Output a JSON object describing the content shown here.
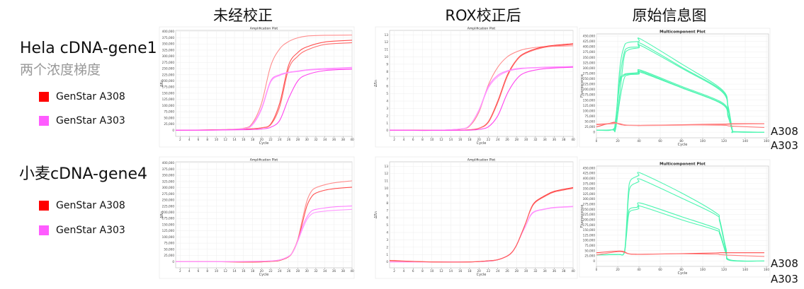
{
  "headers": [
    "未经校正",
    "ROX校正后",
    "原始信息图"
  ],
  "rows": [
    {
      "sample": "Hela cDNA-gene1",
      "subtitle": "两个浓度梯度",
      "legend": [
        {
          "label": "GenStar A308",
          "color": "#ff0000"
        },
        {
          "label": "GenStar A303",
          "color": "#ff5cff"
        }
      ],
      "annotations": [
        "A308",
        "A303"
      ]
    },
    {
      "sample": "小麦cDNA-gene4",
      "subtitle": "",
      "legend": [
        {
          "label": "GenStar A308",
          "color": "#ff0000"
        },
        {
          "label": "GenStar A303",
          "color": "#ff5cff"
        }
      ],
      "annotations": [
        "A308",
        "A303"
      ]
    }
  ],
  "colors": {
    "a308_a": "#ff4040",
    "a308_b": "#ff8c8c",
    "a303": "#ff55ff",
    "multi_green": "#4cf5b0",
    "multi_red": "#ff4a4a"
  },
  "chart_data": [
    {
      "type": "line",
      "title": "Amplification Plot",
      "xlabel": "Cycle",
      "ylabel": "ΔRn",
      "xlim": [
        1,
        40
      ],
      "ylim": [
        -25000,
        405000
      ],
      "xticks": {
        "start": 2,
        "end": 40,
        "step": 2
      },
      "yticks": {
        "start": 0,
        "end": 400000,
        "step": 25000
      },
      "grid": true,
      "x": [
        1,
        10,
        16,
        18,
        20,
        22,
        24,
        26,
        28,
        30,
        34,
        40
      ],
      "series": [
        {
          "color": "#ff8c8c",
          "values": [
            0,
            2000,
            8000,
            30000,
            110000,
            260000,
            330000,
            360000,
            375000,
            382000,
            385000,
            386000
          ]
        },
        {
          "color": "#ff5050",
          "values": [
            0,
            1500,
            4000,
            6000,
            10000,
            25000,
            110000,
            265000,
            315000,
            338000,
            358000,
            365000
          ]
        },
        {
          "color": "#ff6a6a",
          "values": [
            0,
            1500,
            4000,
            6000,
            10000,
            22000,
            95000,
            250000,
            300000,
            325000,
            348000,
            355000
          ]
        },
        {
          "color": "#ff80ff",
          "values": [
            0,
            1000,
            6000,
            25000,
            90000,
            200000,
            225000,
            235000,
            240000,
            245000,
            250000,
            255000
          ]
        },
        {
          "color": "#ff99ff",
          "values": [
            0,
            1000,
            6000,
            22000,
            85000,
            195000,
            222000,
            233000,
            238000,
            243000,
            247000,
            250000
          ]
        },
        {
          "color": "#ff44ee",
          "values": [
            0,
            500,
            2000,
            3000,
            5000,
            12000,
            40000,
            130000,
            200000,
            225000,
            242000,
            248000
          ]
        }
      ]
    },
    {
      "type": "line",
      "title": "Amplification Plot",
      "xlabel": "Cycle",
      "ylabel": "ΔRn",
      "xlim": [
        1,
        40
      ],
      "ylim": [
        -0.8,
        13.6
      ],
      "xticks": {
        "start": 2,
        "end": 40,
        "step": 2
      },
      "yticks": {
        "start": 0,
        "end": 13,
        "step": 1
      },
      "grid": true,
      "x": [
        1,
        10,
        16,
        18,
        20,
        22,
        24,
        26,
        28,
        30,
        34,
        40
      ],
      "series": [
        {
          "color": "#ff8c8c",
          "values": [
            0.05,
            0.02,
            0.2,
            0.6,
            2.5,
            6.2,
            8.6,
            10,
            10.7,
            11.1,
            11.4,
            11.5
          ]
        },
        {
          "color": "#ff4040",
          "values": [
            0.05,
            0.02,
            0.05,
            0.1,
            0.3,
            1.2,
            4,
            7.5,
            9.6,
            10.6,
            11.4,
            11.8
          ]
        },
        {
          "color": "#ff7070",
          "values": [
            0.05,
            0.02,
            0.05,
            0.1,
            0.3,
            1.1,
            3.8,
            7.3,
            9.5,
            10.5,
            11.3,
            11.7
          ]
        },
        {
          "color": "#ff80ff",
          "values": [
            0.05,
            0.02,
            0.2,
            0.7,
            2.8,
            6,
            7.5,
            8.1,
            8.4,
            8.5,
            8.6,
            8.7
          ]
        },
        {
          "color": "#ff99ff",
          "values": [
            0.05,
            0.02,
            0.2,
            0.7,
            2.7,
            5.8,
            7.3,
            8,
            8.3,
            8.45,
            8.55,
            8.6
          ]
        },
        {
          "color": "#ff44ee",
          "values": [
            0.05,
            0.02,
            0.03,
            0.05,
            0.15,
            0.5,
            2,
            5,
            7,
            7.9,
            8.4,
            8.6
          ]
        }
      ]
    },
    {
      "type": "line",
      "title": "Multicomponent Plot",
      "xlabel": "Cycle",
      "ylabel": "Fluorescence",
      "xlim": [
        0,
        162
      ],
      "ylim": [
        -26000,
        460000
      ],
      "xticks": {
        "start": 0,
        "end": 160,
        "step": 20
      },
      "yticks": {
        "start": 0,
        "end": 450000,
        "step": 25000
      },
      "grid": true,
      "x": [
        0,
        15,
        18,
        22,
        26,
        30,
        40,
        42,
        80,
        118,
        124,
        128,
        130,
        158
      ],
      "series": [
        {
          "color": "#4cf5b0",
          "values": [
            10000,
            12000,
            40000,
            300000,
            400000,
            420000,
            425000,
            435000,
            320000,
            200000,
            120000,
            10000,
            3000,
            0
          ]
        },
        {
          "color": "#4cf5b0",
          "values": [
            10000,
            12000,
            30000,
            250000,
            370000,
            395000,
            400000,
            415000,
            305000,
            195000,
            110000,
            8000,
            2000,
            0
          ]
        },
        {
          "color": "#4cf5b0",
          "values": [
            10000,
            11000,
            15000,
            180000,
            350000,
            385000,
            395000,
            405000,
            300000,
            190000,
            100000,
            8000,
            2000,
            0
          ]
        },
        {
          "color": "#4cf5b0",
          "values": [
            10000,
            12000,
            60000,
            240000,
            270000,
            275000,
            280000,
            290000,
            215000,
            140000,
            80000,
            5000,
            1000,
            0
          ]
        },
        {
          "color": "#4cf5b0",
          "values": [
            10000,
            12000,
            45000,
            230000,
            265000,
            272000,
            275000,
            285000,
            210000,
            135000,
            75000,
            5000,
            1000,
            0
          ]
        },
        {
          "color": "#4cf5b0",
          "values": [
            10000,
            11000,
            15000,
            150000,
            250000,
            268000,
            272000,
            280000,
            208000,
            132000,
            70000,
            5000,
            1000,
            0
          ]
        },
        {
          "color": "#ff4a4a",
          "values": [
            25000,
            45000,
            45000,
            38000,
            33000,
            32000,
            32000,
            32000,
            35000,
            38000,
            39000,
            40000,
            40000,
            40000
          ]
        },
        {
          "color": "#ff7a7a",
          "values": [
            35000,
            40000,
            42000,
            40000,
            35000,
            33000,
            32000,
            32000,
            34000,
            33000,
            30000,
            28000,
            28000,
            22000
          ]
        },
        {
          "color": "#ff9090",
          "values": [
            38000,
            42000,
            44000,
            36000,
            33000,
            32000,
            31000,
            31000,
            33000,
            36000,
            37000,
            38000,
            38000,
            39000
          ]
        }
      ]
    },
    {
      "type": "line",
      "title": "Amplification Plot",
      "xlabel": "Cycle",
      "ylabel": "ΔRn",
      "xlim": [
        1,
        40
      ],
      "ylim": [
        -25000,
        405000
      ],
      "xticks": {
        "start": 2,
        "end": 40,
        "step": 2
      },
      "yticks": {
        "start": 0,
        "end": 400000,
        "step": 25000
      },
      "grid": true,
      "x": [
        1,
        10,
        18,
        22,
        24,
        26,
        27,
        28,
        29,
        30,
        31,
        32,
        34,
        36,
        40
      ],
      "series": [
        {
          "color": "#ff8c8c",
          "values": [
            0,
            0,
            -2000,
            1000,
            5000,
            20000,
            45000,
            90000,
            170000,
            245000,
            285000,
            300000,
            312000,
            320000,
            328000
          ]
        },
        {
          "color": "#ff5050",
          "values": [
            0,
            0,
            -2000,
            1000,
            5000,
            20000,
            42000,
            85000,
            155000,
            225000,
            262000,
            278000,
            290000,
            296000,
            302000
          ]
        },
        {
          "color": "#ff80ff",
          "values": [
            0,
            0,
            1000,
            3000,
            7000,
            22000,
            42000,
            85000,
            140000,
            180000,
            205000,
            212000,
            218000,
            222000,
            226000
          ]
        },
        {
          "color": "#ff99ff",
          "values": [
            0,
            0,
            1000,
            3000,
            7000,
            22000,
            42000,
            82000,
            130000,
            170000,
            192000,
            200000,
            205000,
            208000,
            212000
          ]
        }
      ]
    },
    {
      "type": "line",
      "title": "Amplification Plot",
      "xlabel": "Cycle",
      "ylabel": "ΔRn",
      "xlim": [
        1,
        40
      ],
      "ylim": [
        -0.8,
        13.6
      ],
      "xticks": {
        "start": 2,
        "end": 40,
        "step": 2
      },
      "yticks": {
        "start": 0,
        "end": 13,
        "step": 1
      },
      "grid": true,
      "x": [
        1,
        10,
        18,
        22,
        24,
        26,
        27,
        28,
        29,
        30,
        31,
        32,
        34,
        36,
        40
      ],
      "series": [
        {
          "color": "#ff80ff",
          "values": [
            0,
            0,
            0,
            0.1,
            0.3,
            0.8,
            1.3,
            2.3,
            3.7,
            5,
            6.4,
            6.9,
            7.2,
            7.4,
            7.55
          ]
        },
        {
          "color": "#ff99ff",
          "values": [
            0,
            0,
            0,
            0.1,
            0.3,
            0.8,
            1.3,
            2.3,
            3.7,
            5,
            6.3,
            6.85,
            7.15,
            7.35,
            7.5
          ]
        },
        {
          "color": "#ff4040",
          "values": [
            0.2,
            0,
            0,
            0.15,
            0.3,
            0.8,
            1.3,
            2.3,
            3.8,
            5.4,
            7.2,
            8.2,
            9,
            9.6,
            10.1
          ]
        },
        {
          "color": "#ff6060",
          "values": [
            0.15,
            0,
            0,
            0.15,
            0.3,
            0.8,
            1.3,
            2.3,
            3.8,
            5.4,
            7.1,
            8.1,
            8.9,
            9.5,
            10
          ]
        }
      ]
    },
    {
      "type": "line",
      "title": "Multicomponent Plot",
      "xlabel": "Cycle",
      "ylabel": "Fluorescence",
      "xlim": [
        0,
        162
      ],
      "ylim": [
        -26000,
        460000
      ],
      "xticks": {
        "start": 0,
        "end": 160,
        "step": 20
      },
      "yticks": {
        "start": 0,
        "end": 450000,
        "step": 25000
      },
      "grid": true,
      "x": [
        0,
        20,
        26,
        28,
        30,
        32,
        38,
        40,
        42,
        80,
        112,
        116,
        122,
        126,
        158
      ],
      "series": [
        {
          "color": "#4cf5b0",
          "values": [
            30000,
            32000,
            40000,
            150000,
            330000,
            390000,
            410000,
            415000,
            425000,
            330000,
            235000,
            200000,
            60000,
            5000,
            0
          ]
        },
        {
          "color": "#4cf5b0",
          "values": [
            30000,
            32000,
            38000,
            130000,
            300000,
            360000,
            380000,
            385000,
            395000,
            305000,
            225000,
            190000,
            50000,
            5000,
            0
          ]
        },
        {
          "color": "#4cf5b0",
          "values": [
            30000,
            32000,
            38000,
            120000,
            230000,
            255000,
            260000,
            265000,
            280000,
            215000,
            160000,
            140000,
            40000,
            3000,
            0
          ]
        },
        {
          "color": "#4cf5b0",
          "values": [
            30000,
            32000,
            36000,
            110000,
            215000,
            242000,
            250000,
            255000,
            265000,
            200000,
            150000,
            130000,
            35000,
            3000,
            0
          ]
        },
        {
          "color": "#ff4a4a",
          "values": [
            40000,
            48000,
            45000,
            40000,
            36000,
            34000,
            33000,
            33000,
            33000,
            36000,
            39000,
            40000,
            40000,
            40000,
            40000
          ]
        },
        {
          "color": "#ff8080",
          "values": [
            30000,
            45000,
            42000,
            38000,
            35000,
            33000,
            32000,
            32000,
            32000,
            35000,
            33000,
            31000,
            29000,
            28000,
            22000
          ]
        }
      ]
    }
  ]
}
